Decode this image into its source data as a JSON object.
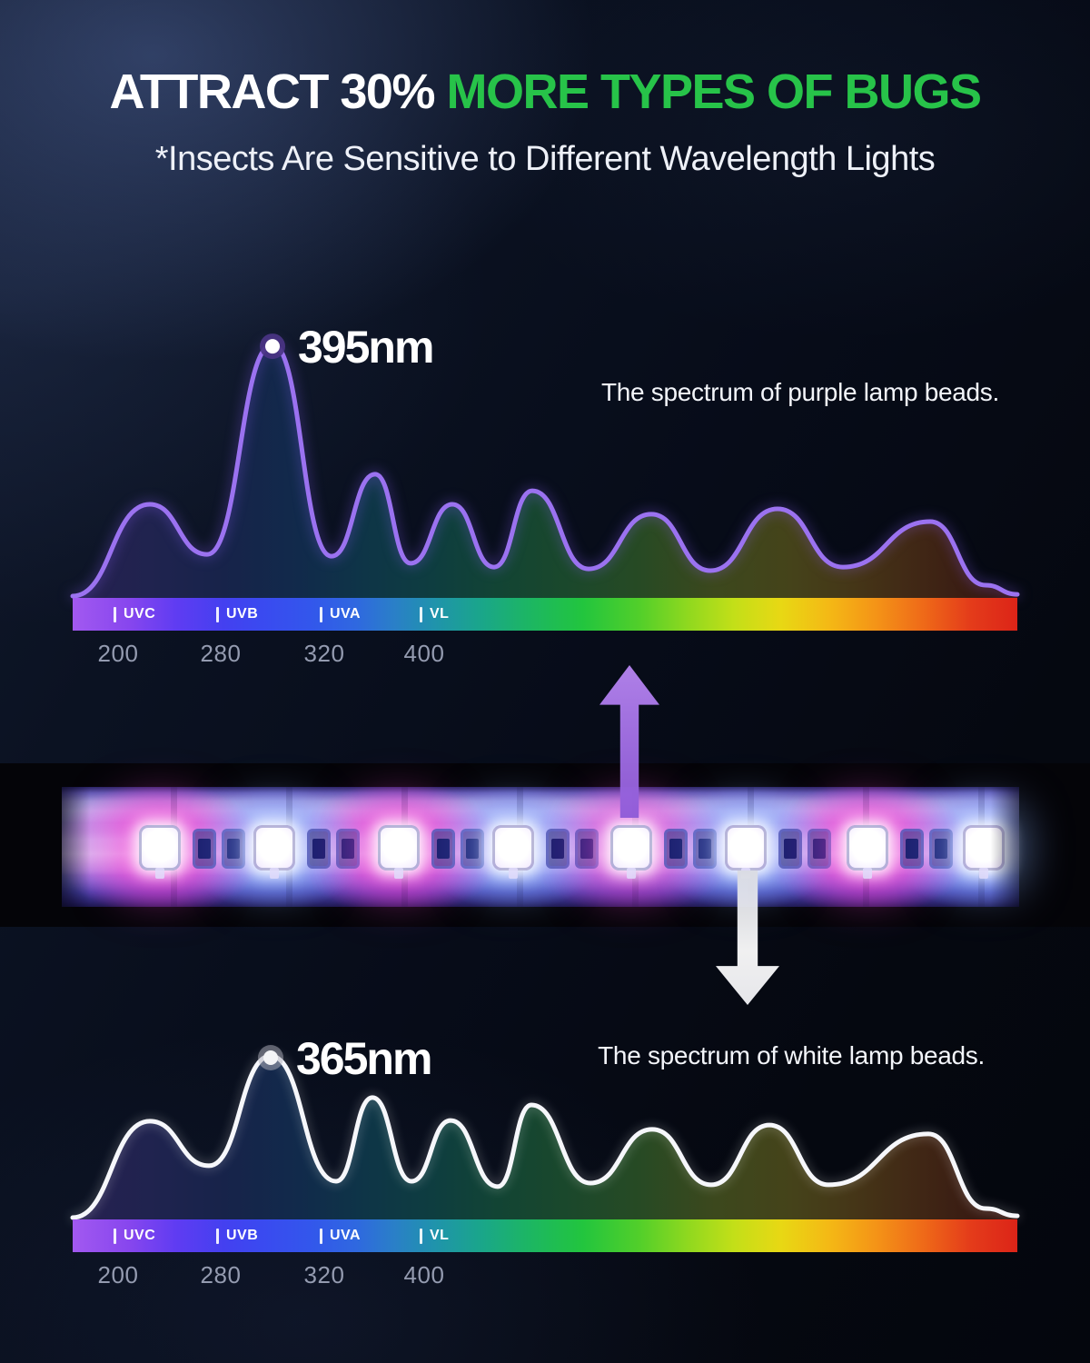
{
  "header": {
    "title_white": "ATTRACT 30% ",
    "title_green": "MORE TYPES OF BUGS",
    "subtitle": "*Insects Are Sensitive to Different Wavelength Lights"
  },
  "colors": {
    "title_green": "#27c349",
    "purple_curve": "#9b72f0",
    "white_curve": "#f6f7fb",
    "up_arrow_purple": "#a471e6",
    "down_arrow_white": "#ffffff"
  },
  "chart_data": [
    {
      "type": "area",
      "name": "purple_lamp_spectrum",
      "title": "The spectrum of purple lamp beads.",
      "peak_label": "395nm",
      "peak_wavelength_nm": 395,
      "curve_color": "#9b72f0",
      "marker_ring_color": "rgba(74,52,132,0.92)",
      "marker_dot_color": "#ffffff",
      "x_axis": {
        "bands": [
          "UVC",
          "UVB",
          "UVA",
          "VL"
        ],
        "tick_labels": [
          "200",
          "280",
          "320",
          "400"
        ],
        "unit": "nm",
        "legend": "wavelength bands over rainbow spectrum bar"
      },
      "intensity_profile": [
        [
          0,
          0.007
        ],
        [
          85,
          0.368
        ],
        [
          148,
          0.171
        ],
        [
          220,
          0.996
        ],
        [
          285,
          0.164
        ],
        [
          333,
          0.486
        ],
        [
          372,
          0.136
        ],
        [
          418,
          0.368
        ],
        [
          464,
          0.121
        ],
        [
          506,
          0.421
        ],
        [
          568,
          0.114
        ],
        [
          637,
          0.329
        ],
        [
          702,
          0.107
        ],
        [
          776,
          0.35
        ],
        [
          848,
          0.121
        ],
        [
          944,
          0.3
        ],
        [
          1005,
          0.05
        ],
        [
          1040,
          0.014
        ]
      ]
    },
    {
      "type": "area",
      "name": "white_lamp_spectrum",
      "title": "The spectrum of white lamp beads.",
      "peak_label": "365nm",
      "peak_wavelength_nm": 365,
      "curve_color": "#f6f7fb",
      "marker_ring_color": "rgba(175,175,188,0.5)",
      "marker_dot_color": "#f4f4f6",
      "x_axis": {
        "bands": [
          "UVC",
          "UVB",
          "UVA",
          "VL"
        ],
        "tick_labels": [
          "200",
          "280",
          "320",
          "400"
        ],
        "unit": "nm",
        "legend": "wavelength bands over rainbow spectrum bar"
      },
      "intensity_profile": [
        [
          0,
          0.007
        ],
        [
          85,
          0.386
        ],
        [
          150,
          0.211
        ],
        [
          218,
          0.643
        ],
        [
          290,
          0.15
        ],
        [
          330,
          0.479
        ],
        [
          373,
          0.15
        ],
        [
          416,
          0.389
        ],
        [
          468,
          0.129
        ],
        [
          505,
          0.45
        ],
        [
          570,
          0.143
        ],
        [
          638,
          0.354
        ],
        [
          703,
          0.136
        ],
        [
          767,
          0.371
        ],
        [
          832,
          0.136
        ],
        [
          942,
          0.336
        ],
        [
          1005,
          0.043
        ],
        [
          1040,
          0.014
        ]
      ]
    }
  ]
}
